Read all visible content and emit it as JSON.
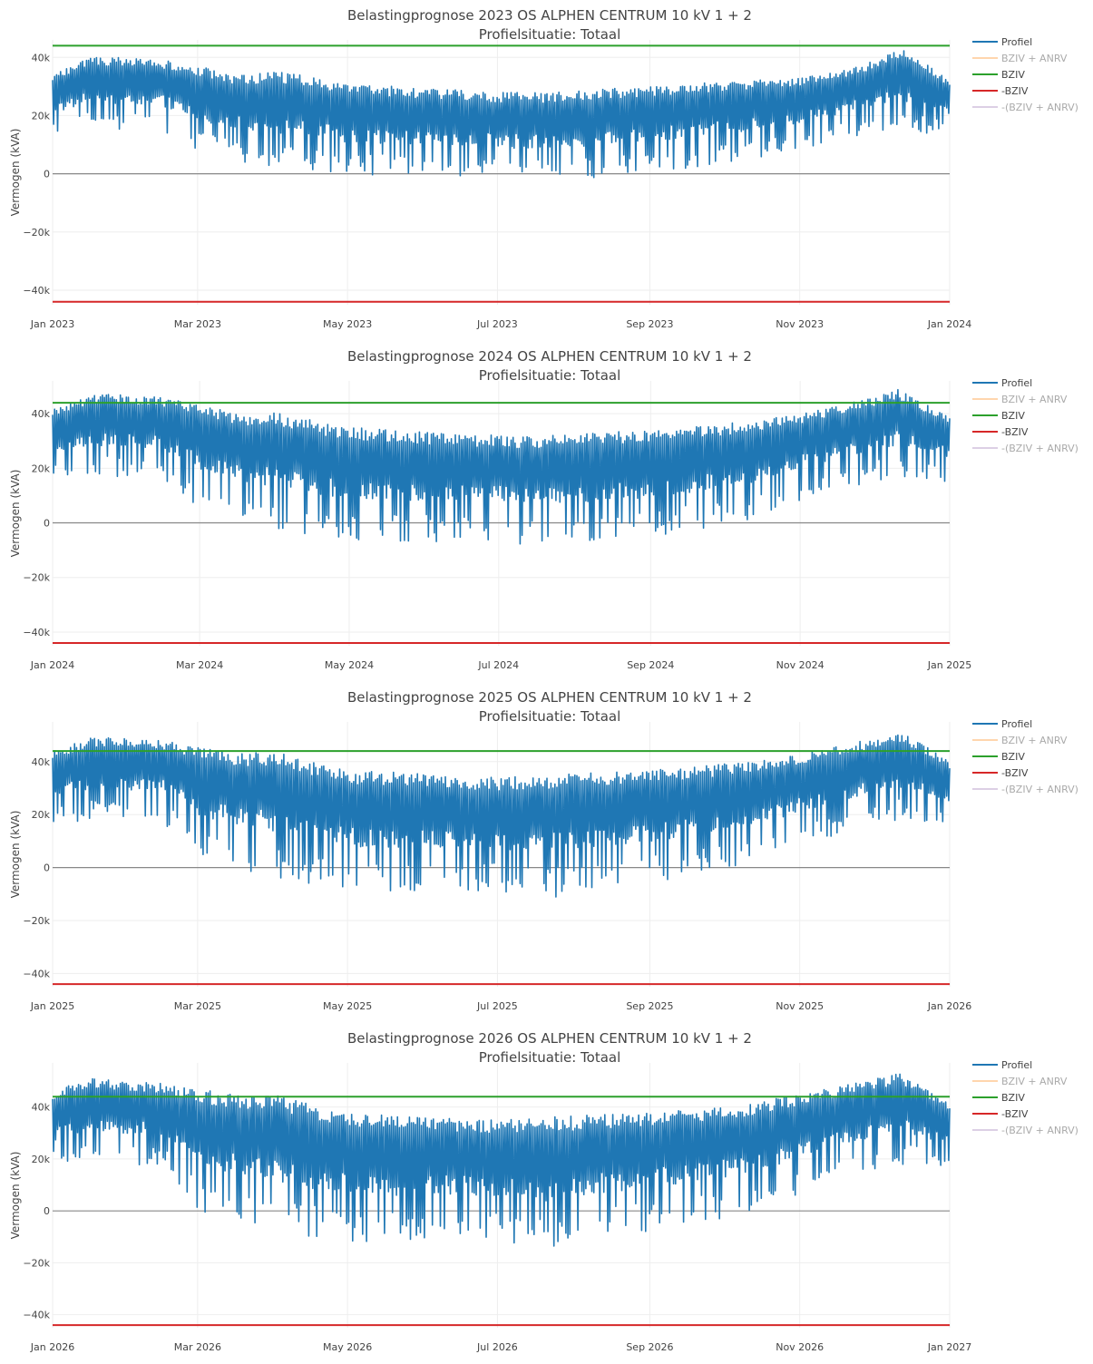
{
  "colors": {
    "profiel": "#1f77b4",
    "bziv_anrv": "#ffbb78",
    "bziv": "#2ca02c",
    "neg_bziv": "#d62728",
    "neg_bziv_anrv": "#c5b0d5",
    "zero_line": "#444444",
    "legend_hidden_text": "#aaaaaa"
  },
  "chart_data": [
    {
      "type": "line",
      "title": "Belastingprognose 2023 OS ALPHEN CENTRUM 10 kV 1 + 2",
      "subtitle": "Profielsituatie: Totaal",
      "ylabel": "Vermogen (kVA)",
      "ylim": [
        -45000,
        46000
      ],
      "yticks": [
        {
          "v": 40000,
          "label": "40k"
        },
        {
          "v": 20000,
          "label": "20k"
        },
        {
          "v": 0,
          "label": "0"
        },
        {
          "v": -20000,
          "label": "−20k"
        },
        {
          "v": -40000,
          "label": "−40k"
        }
      ],
      "xticks": [
        "Jan 2023",
        "Mar 2023",
        "May 2023",
        "Jul 2023",
        "Sep 2023",
        "Nov 2023",
        "Jan 2024"
      ],
      "xtick_days": [
        0,
        59,
        120,
        181,
        243,
        304,
        365
      ],
      "days": 365,
      "bziv": 44000,
      "neg_bziv": -44000,
      "profiel_envelope": {
        "day": [
          0,
          15,
          31,
          45,
          59,
          75,
          90,
          105,
          120,
          140,
          160,
          181,
          200,
          220,
          243,
          260,
          280,
          304,
          320,
          335,
          345,
          355,
          365
        ],
        "max": [
          34000,
          40000,
          40000,
          39000,
          37000,
          34000,
          35000,
          34000,
          31000,
          30000,
          29000,
          28000,
          28000,
          29000,
          30000,
          31000,
          32000,
          33000,
          35000,
          39000,
          43000,
          38000,
          32000
        ],
        "min": [
          13000,
          15000,
          15000,
          14000,
          8000,
          4000,
          2000,
          0,
          -1000,
          -1000,
          -2000,
          -2000,
          -3000,
          -2000,
          0,
          2000,
          4000,
          8000,
          12000,
          14000,
          15000,
          14000,
          13000
        ]
      },
      "legend": [
        {
          "name": "Profiel",
          "key": "profiel",
          "visible": true
        },
        {
          "name": "BZIV + ANRV",
          "key": "bziv_anrv",
          "visible": false
        },
        {
          "name": "BZIV",
          "key": "bziv",
          "visible": true
        },
        {
          "name": "-BZIV",
          "key": "neg_bziv",
          "visible": true
        },
        {
          "name": "-(BZIV + ANRV)",
          "key": "neg_bziv_anrv",
          "visible": false
        }
      ]
    },
    {
      "type": "line",
      "title": "Belastingprognose 2024 OS ALPHEN CENTRUM 10 kV 1 + 2",
      "subtitle": "Profielsituatie: Totaal",
      "ylabel": "Vermogen (kVA)",
      "ylim": [
        -45000,
        52000
      ],
      "yticks": [
        {
          "v": 40000,
          "label": "40k"
        },
        {
          "v": 20000,
          "label": "20k"
        },
        {
          "v": 0,
          "label": "0"
        },
        {
          "v": -20000,
          "label": "−20k"
        },
        {
          "v": -40000,
          "label": "−40k"
        }
      ],
      "xticks": [
        "Jan 2024",
        "Mar 2024",
        "May 2024",
        "Jul 2024",
        "Sep 2024",
        "Nov 2024",
        "Jan 2025"
      ],
      "xtick_days": [
        0,
        60,
        121,
        182,
        244,
        305,
        366
      ],
      "days": 366,
      "bziv": 44000,
      "neg_bziv": -44000,
      "profiel_envelope": {
        "day": [
          0,
          15,
          31,
          45,
          60,
          75,
          90,
          105,
          121,
          140,
          160,
          182,
          200,
          220,
          244,
          260,
          280,
          305,
          320,
          335,
          345,
          355,
          366
        ],
        "max": [
          42000,
          47000,
          47000,
          46000,
          44000,
          40000,
          41000,
          38000,
          35000,
          34000,
          33000,
          32000,
          32000,
          33000,
          34000,
          35000,
          37000,
          40000,
          43000,
          46000,
          49000,
          44000,
          39000
        ],
        "min": [
          15000,
          17000,
          17000,
          16000,
          5000,
          0,
          -3000,
          -5000,
          -7000,
          -7000,
          -7000,
          -7000,
          -9000,
          -7000,
          -5000,
          -3000,
          0,
          8000,
          12000,
          15000,
          17000,
          16000,
          15000
        ]
      },
      "legend": [
        {
          "name": "Profiel",
          "key": "profiel",
          "visible": true
        },
        {
          "name": "BZIV + ANRV",
          "key": "bziv_anrv",
          "visible": false
        },
        {
          "name": "BZIV",
          "key": "bziv",
          "visible": true
        },
        {
          "name": "-BZIV",
          "key": "neg_bziv",
          "visible": true
        },
        {
          "name": "-(BZIV + ANRV)",
          "key": "neg_bziv_anrv",
          "visible": false
        }
      ]
    },
    {
      "type": "line",
      "title": "Belastingprognose 2025 OS ALPHEN CENTRUM 10 kV 1 + 2",
      "subtitle": "Profielsituatie: Totaal",
      "ylabel": "Vermogen (kVA)",
      "ylim": [
        -45000,
        55000
      ],
      "yticks": [
        {
          "v": 40000,
          "label": "40k"
        },
        {
          "v": 20000,
          "label": "20k"
        },
        {
          "v": 0,
          "label": "0"
        },
        {
          "v": -20000,
          "label": "−20k"
        },
        {
          "v": -40000,
          "label": "−40k"
        }
      ],
      "xticks": [
        "Jan 2025",
        "Mar 2025",
        "May 2025",
        "Jul 2025",
        "Sep 2025",
        "Nov 2025",
        "Jan 2026"
      ],
      "xtick_days": [
        0,
        59,
        120,
        181,
        243,
        304,
        365
      ],
      "days": 365,
      "bziv": 44000,
      "neg_bziv": -44000,
      "profiel_envelope": {
        "day": [
          0,
          15,
          31,
          45,
          59,
          75,
          90,
          105,
          120,
          140,
          160,
          181,
          200,
          220,
          243,
          260,
          280,
          304,
          320,
          335,
          345,
          355,
          365
        ],
        "max": [
          44000,
          49000,
          49000,
          48000,
          46000,
          43000,
          44000,
          40000,
          37000,
          36000,
          35000,
          34000,
          35000,
          36000,
          37000,
          38000,
          40000,
          43000,
          46000,
          49000,
          51000,
          46000,
          40000
        ],
        "min": [
          16000,
          18000,
          18000,
          17000,
          4000,
          0,
          -4000,
          -7000,
          -9000,
          -9000,
          -9000,
          -9000,
          -12000,
          -9000,
          -6000,
          -3000,
          0,
          8000,
          12000,
          16000,
          18000,
          17000,
          16000
        ]
      },
      "legend": [
        {
          "name": "Profiel",
          "key": "profiel",
          "visible": true
        },
        {
          "name": "BZIV + ANRV",
          "key": "bziv_anrv",
          "visible": false
        },
        {
          "name": "BZIV",
          "key": "bziv",
          "visible": true
        },
        {
          "name": "-BZIV",
          "key": "neg_bziv",
          "visible": true
        },
        {
          "name": "-(BZIV + ANRV)",
          "key": "neg_bziv_anrv",
          "visible": false
        }
      ]
    },
    {
      "type": "line",
      "title": "Belastingprognose 2026 OS ALPHEN CENTRUM 10 kV 1 + 2",
      "subtitle": "Profielsituatie: Totaal",
      "ylabel": "Vermogen (kVA)",
      "ylim": [
        -45000,
        57000
      ],
      "yticks": [
        {
          "v": 40000,
          "label": "40k"
        },
        {
          "v": 20000,
          "label": "20k"
        },
        {
          "v": 0,
          "label": "0"
        },
        {
          "v": -20000,
          "label": "−20k"
        },
        {
          "v": -40000,
          "label": "−40k"
        }
      ],
      "xticks": [
        "Jan 2026",
        "Mar 2026",
        "May 2026",
        "Jul 2026",
        "Sep 2026",
        "Nov 2026",
        "Jan 2027"
      ],
      "xtick_days": [
        0,
        59,
        120,
        181,
        243,
        304,
        365
      ],
      "days": 365,
      "bziv": 44000,
      "neg_bziv": -44000,
      "profiel_envelope": {
        "day": [
          0,
          15,
          31,
          45,
          59,
          75,
          90,
          105,
          120,
          140,
          160,
          181,
          200,
          220,
          243,
          260,
          280,
          304,
          320,
          335,
          345,
          355,
          365
        ],
        "max": [
          46000,
          51000,
          50000,
          49000,
          47000,
          45000,
          45000,
          41000,
          38000,
          37000,
          36000,
          35000,
          36000,
          37000,
          38000,
          39000,
          41000,
          45000,
          48000,
          51000,
          53000,
          47000,
          41000
        ],
        "min": [
          16000,
          18000,
          18000,
          17000,
          0,
          -3000,
          -8000,
          -10000,
          -12000,
          -12000,
          -11000,
          -11000,
          -15000,
          -11000,
          -8000,
          -5000,
          -2000,
          6000,
          12000,
          16000,
          18000,
          17000,
          16000
        ]
      },
      "legend": [
        {
          "name": "Profiel",
          "key": "profiel",
          "visible": true
        },
        {
          "name": "BZIV + ANRV",
          "key": "bziv_anrv",
          "visible": false
        },
        {
          "name": "BZIV",
          "key": "bziv",
          "visible": true
        },
        {
          "name": "-BZIV",
          "key": "neg_bziv",
          "visible": true
        },
        {
          "name": "-(BZIV + ANRV)",
          "key": "neg_bziv_anrv",
          "visible": false
        }
      ]
    }
  ]
}
